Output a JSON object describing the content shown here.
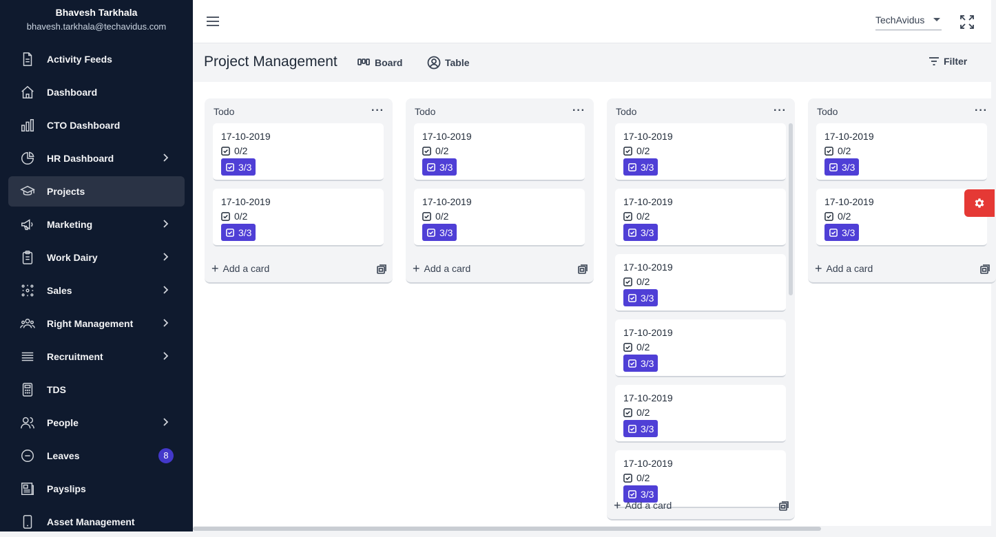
{
  "user": {
    "name": "Bhavesh Tarkhala",
    "email": "bhavesh.tarkhala@techavidus.com"
  },
  "sidebar": {
    "items": [
      {
        "label": "Activity Feeds",
        "icon": "document-icon",
        "chevron": false
      },
      {
        "label": "Dashboard",
        "icon": "home-icon",
        "chevron": false
      },
      {
        "label": "CTO Dashboard",
        "icon": "bar-chart-icon",
        "chevron": false
      },
      {
        "label": "HR Dashboard",
        "icon": "pie-chart-icon",
        "chevron": true
      },
      {
        "label": "Projects",
        "icon": "graduation-cap-icon",
        "chevron": false,
        "active": true
      },
      {
        "label": "Marketing",
        "icon": "megaphone-icon",
        "chevron": true
      },
      {
        "label": "Work Dairy",
        "icon": "clipboard-icon",
        "chevron": true
      },
      {
        "label": "Sales",
        "icon": "network-icon",
        "chevron": true
      },
      {
        "label": "Right Management",
        "icon": "users-icon",
        "chevron": true
      },
      {
        "label": "Recruitment",
        "icon": "list-icon",
        "chevron": true
      },
      {
        "label": "TDS",
        "icon": "calculator-icon",
        "chevron": false
      },
      {
        "label": "People",
        "icon": "people-icon",
        "chevron": true
      },
      {
        "label": "Leaves",
        "icon": "minus-circle-icon",
        "chevron": false,
        "badge": "8"
      },
      {
        "label": "Payslips",
        "icon": "newspaper-icon",
        "chevron": false
      },
      {
        "label": "Asset Management",
        "icon": "device-icon",
        "chevron": false
      }
    ]
  },
  "topbar": {
    "org": "TechAvidus"
  },
  "header": {
    "title": "Project Management",
    "board_label": "Board",
    "table_label": "Table",
    "filter_label": "Filter"
  },
  "board": {
    "add_card_label": "Add a card",
    "columns": [
      {
        "title": "Todo",
        "cards": [
          {
            "date": "17-10-2019",
            "checklist": "0/2",
            "badge": "3/3"
          },
          {
            "date": "17-10-2019",
            "checklist": "0/2",
            "badge": "3/3"
          }
        ]
      },
      {
        "title": "Todo",
        "cards": [
          {
            "date": "17-10-2019",
            "checklist": "0/2",
            "badge": "3/3"
          },
          {
            "date": "17-10-2019",
            "checklist": "0/2",
            "badge": "3/3"
          }
        ]
      },
      {
        "title": "Todo",
        "cards": [
          {
            "date": "17-10-2019",
            "checklist": "0/2",
            "badge": "3/3"
          },
          {
            "date": "17-10-2019",
            "checklist": "0/2",
            "badge": "3/3"
          },
          {
            "date": "17-10-2019",
            "checklist": "0/2",
            "badge": "3/3"
          },
          {
            "date": "17-10-2019",
            "checklist": "0/2",
            "badge": "3/3"
          },
          {
            "date": "17-10-2019",
            "checklist": "0/2",
            "badge": "3/3"
          },
          {
            "date": "17-10-2019",
            "checklist": "0/2",
            "badge": "3/3"
          }
        ]
      },
      {
        "title": "Todo",
        "cards": [
          {
            "date": "17-10-2019",
            "checklist": "0/2",
            "badge": "3/3"
          },
          {
            "date": "17-10-2019",
            "checklist": "0/2",
            "badge": "3/3"
          }
        ]
      }
    ]
  },
  "colors": {
    "sidebar_bg": "#0f1a2e",
    "badge": "#4f3fd6",
    "accent": "#4338ca",
    "fab": "#e53935"
  }
}
